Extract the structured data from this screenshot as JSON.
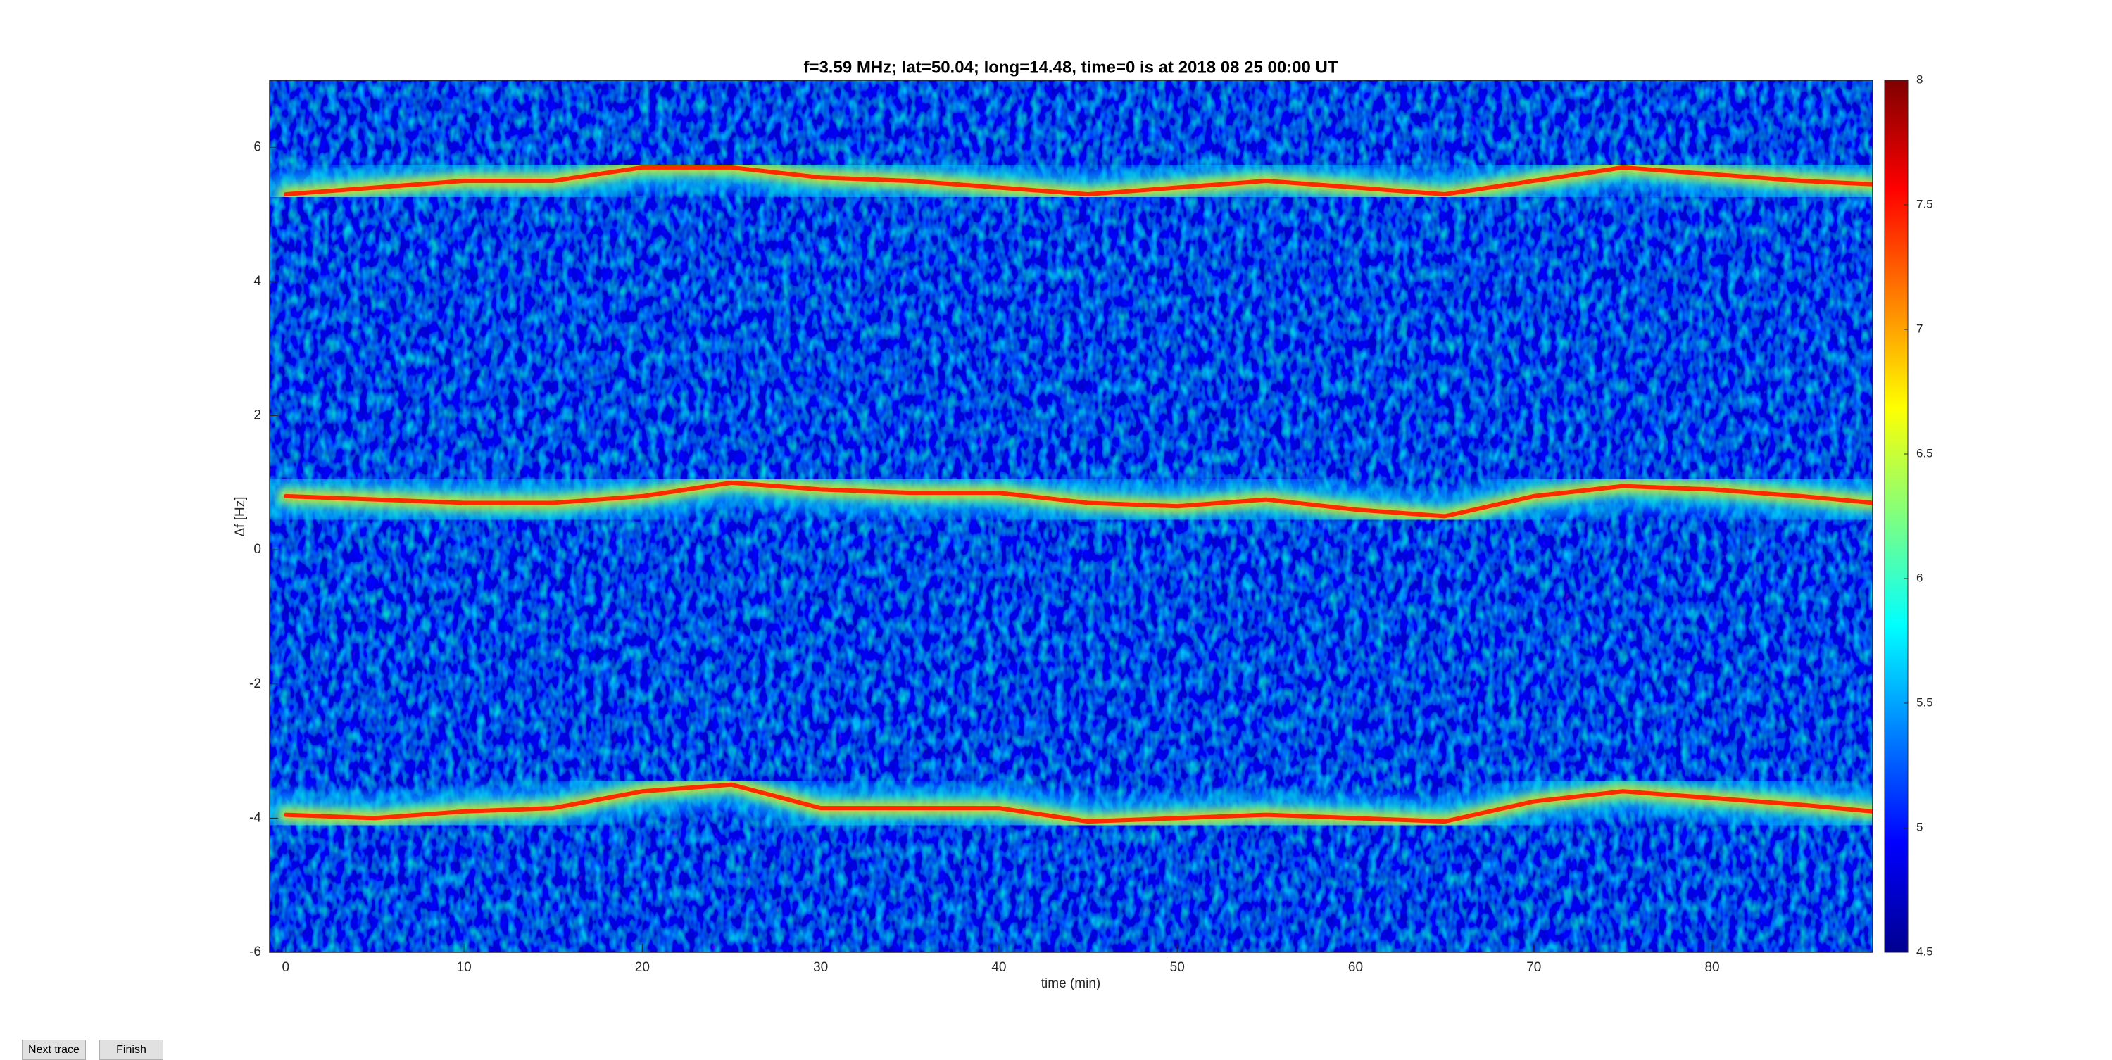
{
  "chart_data": {
    "type": "spectrogram",
    "title": "f=3.59 MHz;  lat=50.04; long=14.48, time=0 is at 2018 08 25 00:00 UT",
    "xlabel": "time (min)",
    "ylabel": "Δf [Hz]",
    "x": [
      0,
      5,
      10,
      15,
      20,
      25,
      30,
      35,
      40,
      45,
      50,
      55,
      60,
      65,
      70,
      75,
      80,
      85,
      89
    ],
    "series": [
      {
        "color": "#ff2a00",
        "values": [
          5.3,
          5.4,
          5.5,
          5.5,
          5.7,
          5.7,
          5.55,
          5.5,
          5.4,
          5.3,
          5.4,
          5.5,
          5.4,
          5.3,
          5.5,
          5.7,
          5.6,
          5.5,
          5.45
        ]
      },
      {
        "color": "#ff2a00",
        "values": [
          0.8,
          0.75,
          0.7,
          0.7,
          0.8,
          1.0,
          0.9,
          0.85,
          0.85,
          0.7,
          0.65,
          0.75,
          0.6,
          0.5,
          0.8,
          0.95,
          0.9,
          0.8,
          0.7
        ]
      },
      {
        "color": "#ff2a00",
        "values": [
          -3.95,
          -4.0,
          -3.9,
          -3.85,
          -3.6,
          -3.5,
          -3.85,
          -3.85,
          -3.85,
          -4.05,
          -4.0,
          -3.95,
          -4.0,
          -4.05,
          -3.75,
          -3.6,
          -3.7,
          -3.8,
          -3.9
        ]
      }
    ],
    "xlim": [
      -0.9,
      89
    ],
    "ylim": [
      -6,
      7
    ],
    "xticks": [
      0,
      10,
      20,
      30,
      40,
      50,
      60,
      70,
      80
    ],
    "yticks": [
      -6,
      -4,
      -2,
      0,
      2,
      4,
      6
    ],
    "clim": [
      4.5,
      8
    ],
    "cticks": [
      4.5,
      5,
      5.5,
      6,
      6.5,
      7,
      7.5,
      8
    ],
    "colormap": "jet"
  },
  "controls": {
    "buttons": [
      "Next trace",
      "Finish"
    ]
  }
}
